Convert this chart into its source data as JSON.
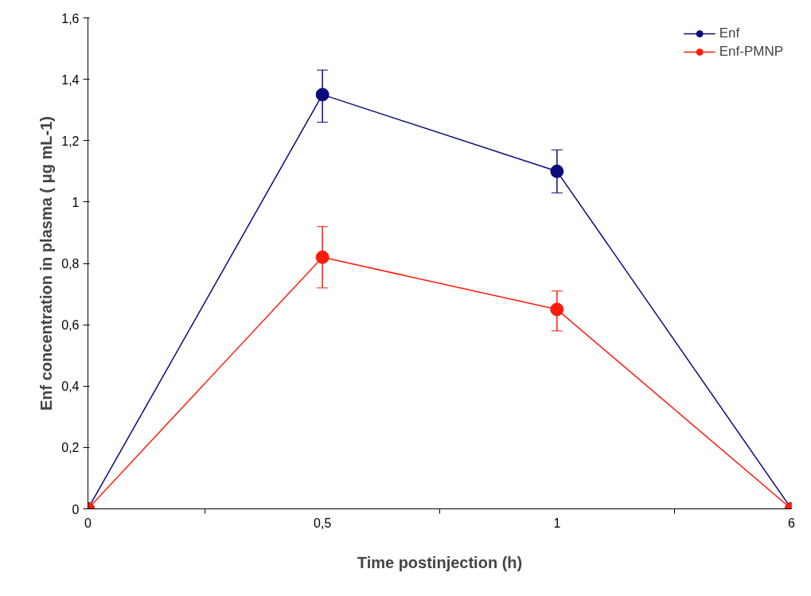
{
  "chart_data": {
    "type": "line",
    "xlabel": "Time postinjection (h)",
    "ylabel": "Enf concentration in plasma ( μg mL-1)",
    "categories": [
      "0",
      "0,5",
      "1",
      "6"
    ],
    "series": [
      {
        "name": "Enf",
        "color": "#0a0a7a",
        "values": [
          0,
          1.35,
          1.1,
          0
        ],
        "errors": [
          null,
          [
            1.26,
            1.43
          ],
          [
            1.03,
            1.17
          ],
          null
        ]
      },
      {
        "name": "Enf-PMNP",
        "color": "#ff1a0a",
        "values": [
          0,
          0.82,
          0.65,
          0
        ],
        "errors": [
          null,
          [
            0.72,
            0.92
          ],
          [
            0.58,
            0.71
          ],
          null
        ]
      }
    ],
    "ylim": [
      0,
      1.6
    ],
    "yticks": [
      0,
      {
        "value": 0.2,
        "label": "0,2"
      },
      {
        "value": 0.4,
        "label": "0,4"
      },
      {
        "value": 0.6,
        "label": "0,6"
      },
      {
        "value": 0.8,
        "label": "0,8"
      },
      1,
      {
        "value": 1.2,
        "label": "1,2"
      },
      {
        "value": 1.4,
        "label": "1,4"
      },
      {
        "value": 1.6,
        "label": "1,6"
      }
    ],
    "grid": false,
    "legend": "top right",
    "marker": "circle",
    "line_style": "solid"
  }
}
